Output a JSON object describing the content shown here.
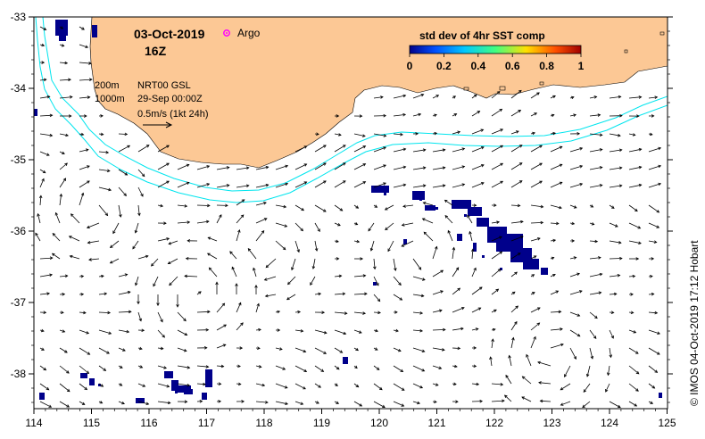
{
  "header": {
    "date": "03-Oct-2019",
    "time": "16Z",
    "argo_label": "Argo"
  },
  "legend": {
    "title": "std dev of 4hr SST comp",
    "ticks": [
      "0",
      "0.2",
      "0.4",
      "0.6",
      "0.8",
      "1"
    ],
    "colors": [
      "#00008b",
      "#0050ff",
      "#00c8ff",
      "#40ff80",
      "#ffe000",
      "#ff5000",
      "#a00000"
    ]
  },
  "info": {
    "contour1": "200m",
    "contour2": "1000m",
    "source": "NRT00 GSL",
    "source_date": "29-Sep 00:00Z",
    "scale_label": "0.5m/s (1kt 24h)"
  },
  "axes": {
    "x_ticks": [
      "114",
      "115",
      "116",
      "117",
      "118",
      "119",
      "120",
      "121",
      "122",
      "123",
      "124",
      "125"
    ],
    "y_ticks": [
      "-33",
      "-34",
      "-35",
      "-36",
      "-37",
      "-38"
    ]
  },
  "credit": "© IMOS 04-Oct-2019 17:12 Hobart",
  "colors": {
    "land": "#fcc895",
    "isobath": "#00e5ee",
    "sst": "#00008b",
    "argo": "#ff00ff"
  }
}
